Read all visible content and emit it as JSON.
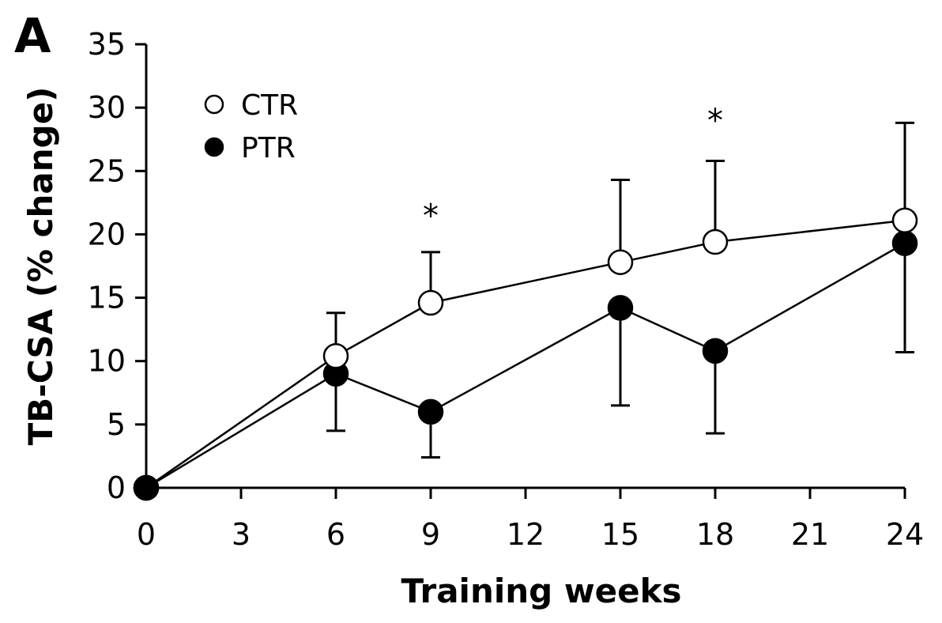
{
  "panel_label": "A",
  "chart_data": {
    "type": "line",
    "xlabel": "Training weeks",
    "ylabel": "TB-CSA (% change)",
    "xlim": [
      0,
      24
    ],
    "ylim": [
      0,
      35
    ],
    "xticks": [
      0,
      3,
      6,
      9,
      12,
      15,
      18,
      21,
      24
    ],
    "yticks": [
      0,
      5,
      10,
      15,
      20,
      25,
      30,
      35
    ],
    "grid": false,
    "legend_position": "top-left",
    "series": [
      {
        "name": "CTR",
        "marker": "open-circle",
        "x": [
          0,
          6,
          9,
          15,
          18,
          24
        ],
        "y": [
          0,
          10.4,
          14.6,
          17.8,
          19.4,
          21.1
        ],
        "error_dir": "up",
        "error": [
          0,
          3.4,
          4.0,
          6.5,
          6.4,
          7.7
        ]
      },
      {
        "name": "PTR",
        "marker": "filled-circle",
        "x": [
          0,
          6,
          9,
          15,
          18,
          24
        ],
        "y": [
          0,
          9.0,
          6.0,
          14.2,
          10.8,
          19.3
        ],
        "error_dir": "down",
        "error": [
          0,
          4.5,
          3.6,
          7.7,
          6.5,
          8.6
        ]
      }
    ],
    "annotations": [
      {
        "x": 9,
        "y": 21.5,
        "text": "*"
      },
      {
        "x": 18,
        "y": 29.0,
        "text": "*"
      }
    ]
  }
}
